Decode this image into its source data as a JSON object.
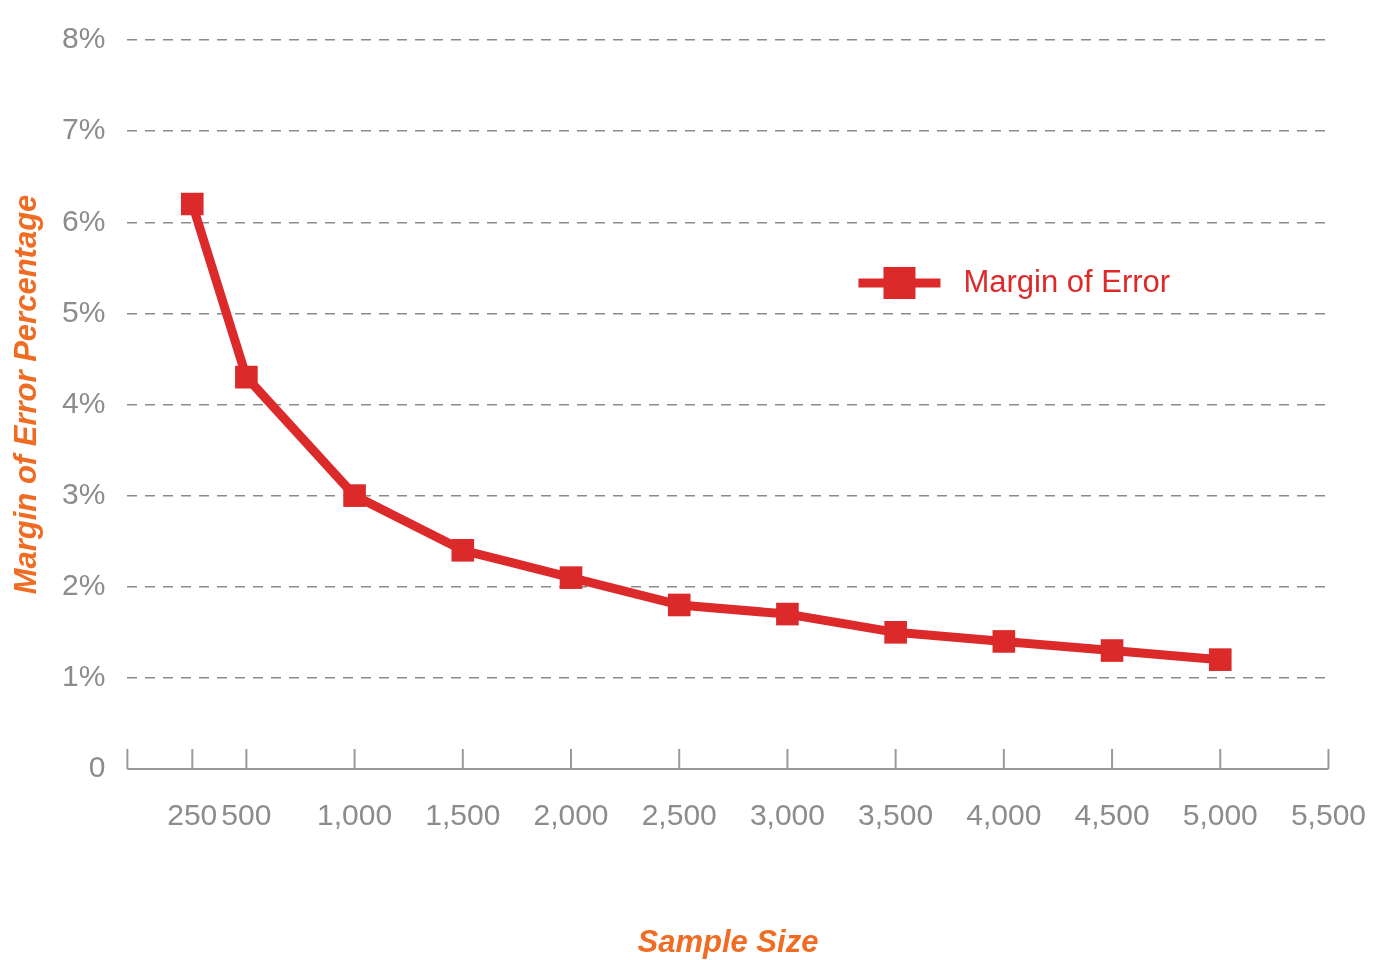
{
  "chart_data": {
    "type": "line",
    "xlabel": "Sample Size",
    "ylabel": "Margin of Error Percentage",
    "x": [
      250,
      500,
      1000,
      1500,
      2000,
      2500,
      3000,
      3500,
      4000,
      4500,
      5000
    ],
    "series": [
      {
        "name": "Margin of Error",
        "color": "#dc2a2a",
        "values": [
          6.2,
          4.3,
          3.0,
          2.4,
          2.1,
          1.8,
          1.7,
          1.5,
          1.4,
          1.3,
          1.2
        ]
      }
    ],
    "xlim": [
      -50,
      5500
    ],
    "xticks": [
      {
        "value": 250,
        "label": "250"
      },
      {
        "value": 500,
        "label": "500"
      },
      {
        "value": 1000,
        "label": "1,000"
      },
      {
        "value": 1500,
        "label": "1,500"
      },
      {
        "value": 2000,
        "label": "2,000"
      },
      {
        "value": 2500,
        "label": "2,500"
      },
      {
        "value": 3000,
        "label": "3,000"
      },
      {
        "value": 3500,
        "label": "3,500"
      },
      {
        "value": 4000,
        "label": "4,000"
      },
      {
        "value": 4500,
        "label": "4,500"
      },
      {
        "value": 5000,
        "label": "5,000"
      },
      {
        "value": 5500,
        "label": "5,500"
      }
    ],
    "ylim": [
      0,
      8
    ],
    "yticks": [
      0,
      {
        "value": 1,
        "label": "1%"
      },
      {
        "value": 2,
        "label": "2%"
      },
      {
        "value": 3,
        "label": "3%"
      },
      {
        "value": 4,
        "label": "4%"
      },
      {
        "value": 5,
        "label": "5%"
      },
      {
        "value": 6,
        "label": "6%"
      },
      {
        "value": 7,
        "label": "7%"
      },
      {
        "value": 8,
        "label": "8%"
      }
    ],
    "grid": "y",
    "legend": "top right",
    "marker": "square",
    "line_style": "solid"
  }
}
